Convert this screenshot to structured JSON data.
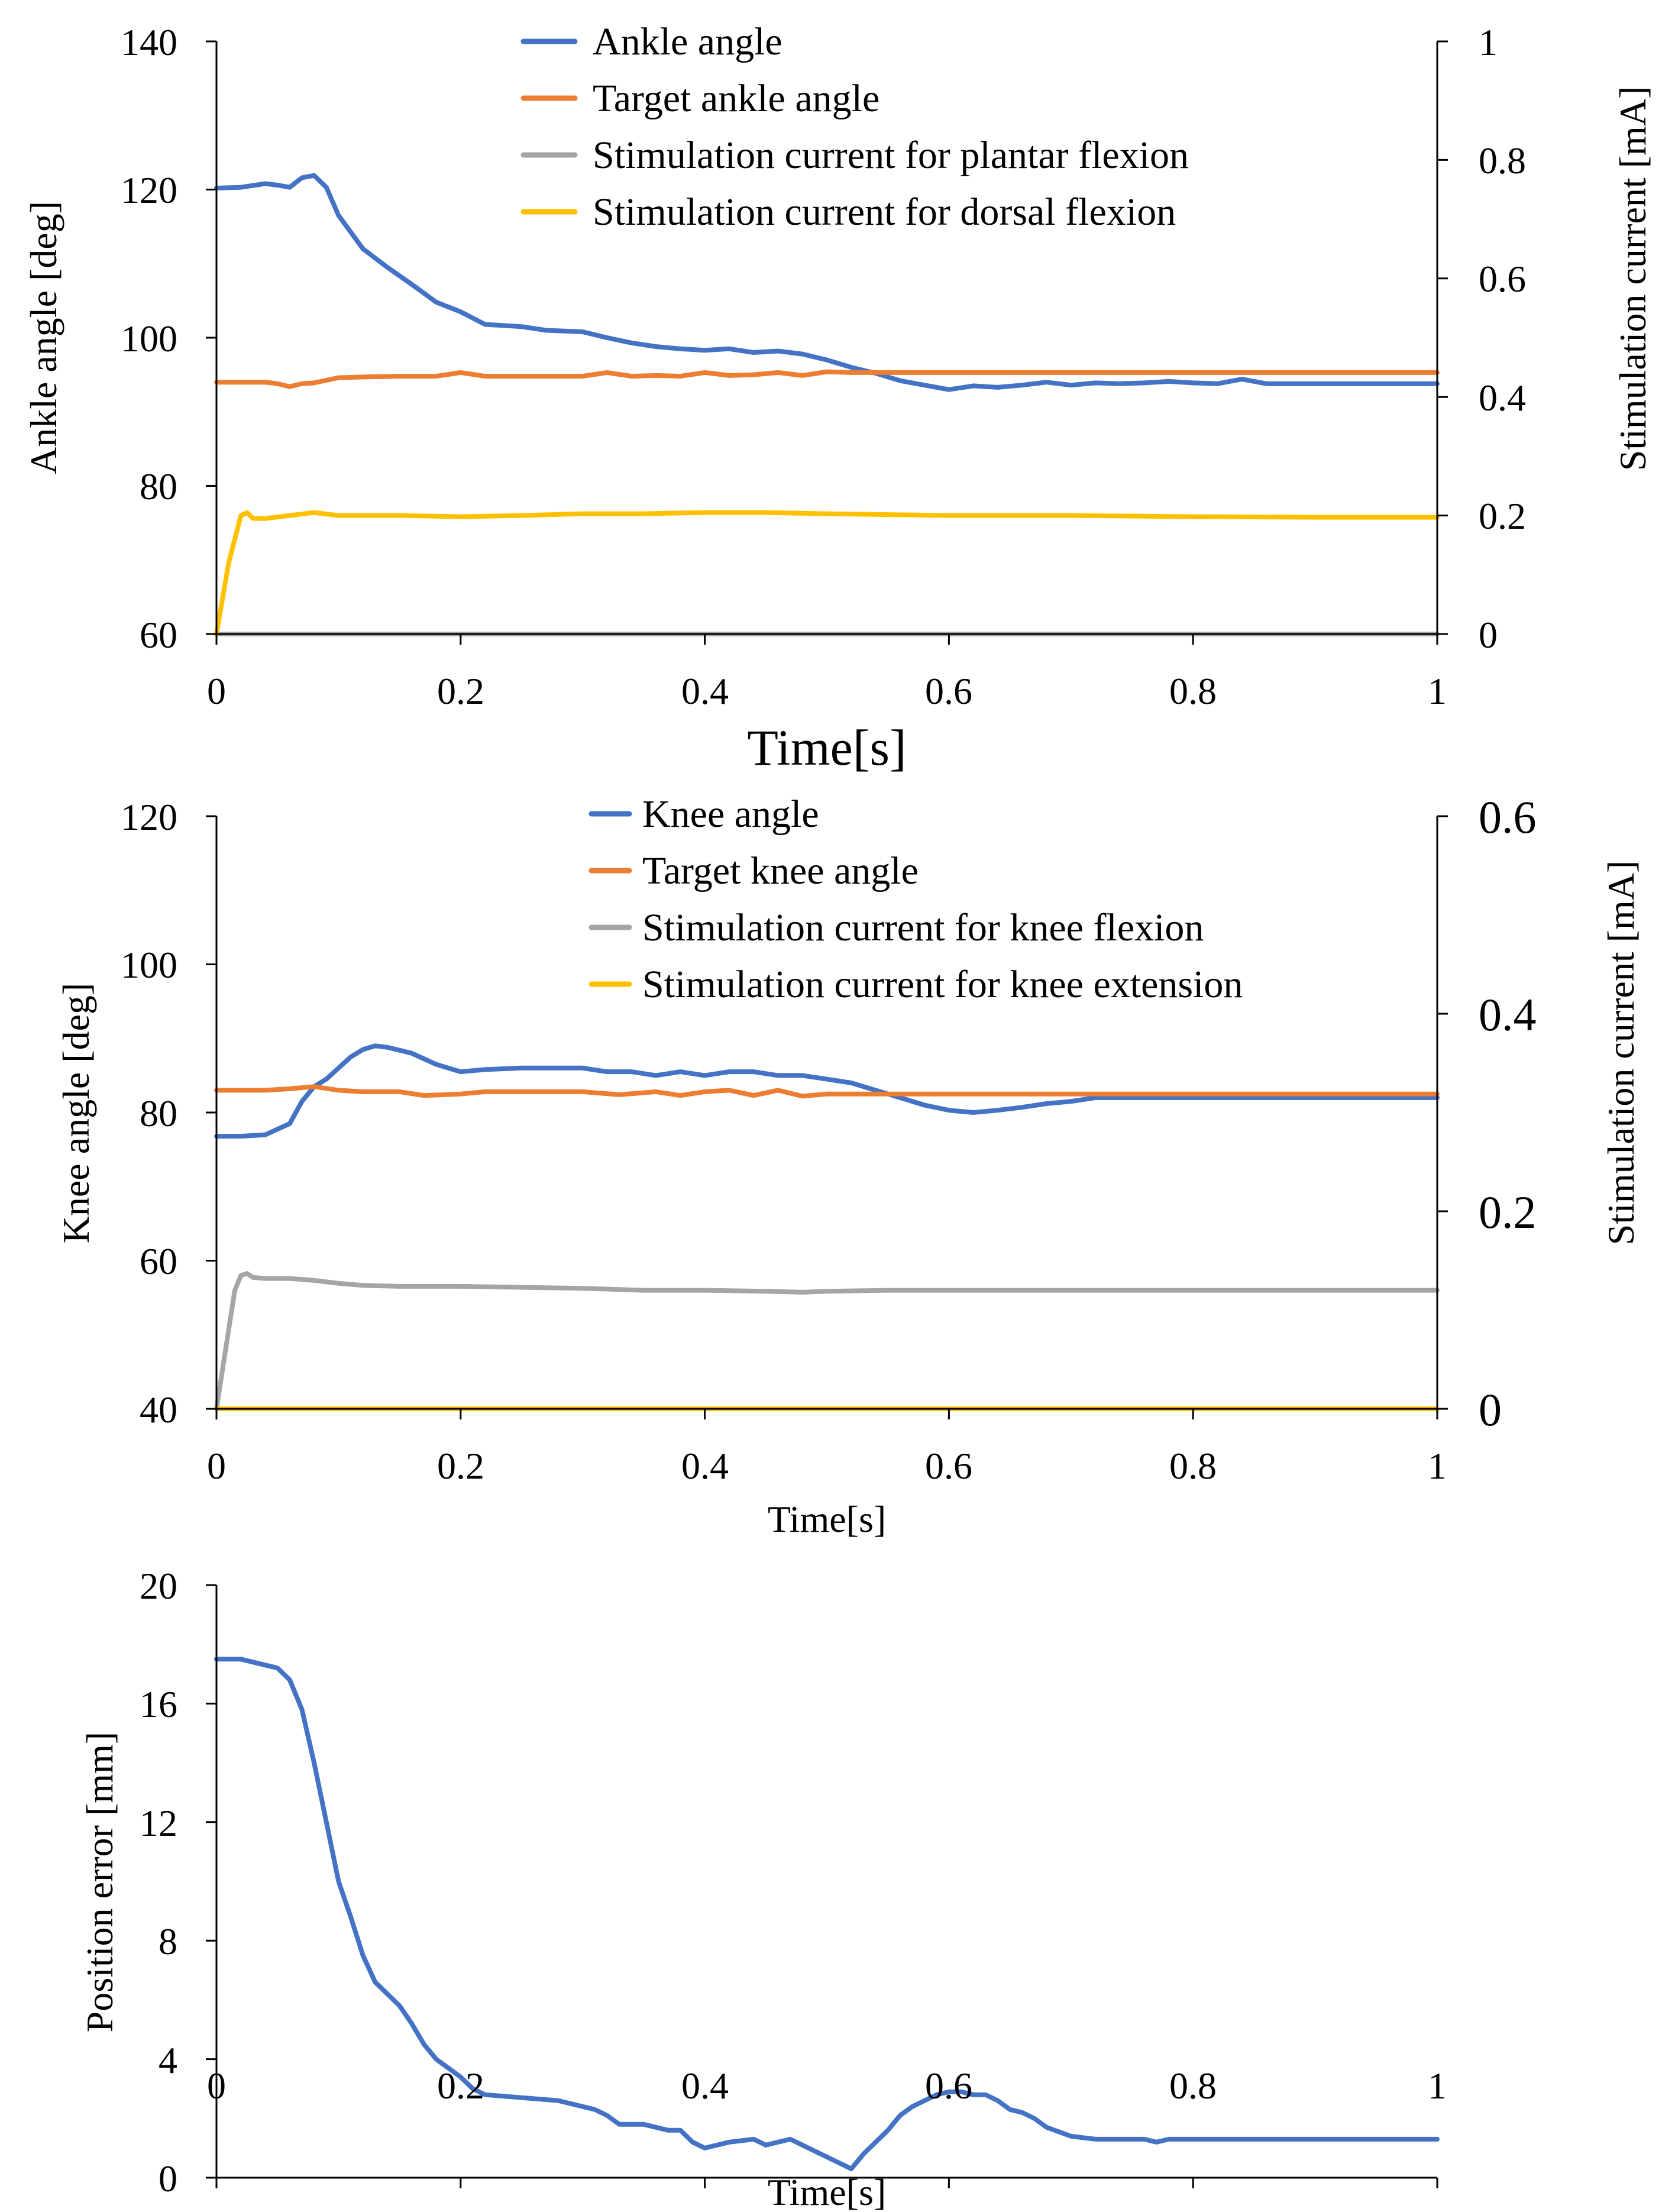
{
  "colors": {
    "blue": "#4472C4",
    "orange": "#ED7D31",
    "gray": "#A5A5A5",
    "yellow": "#FFC000"
  },
  "chart_data": [
    {
      "type": "line",
      "title": "",
      "xlabel": "Time[s]",
      "ylabel": "Ankle angle [deg]",
      "y2label": "Stimulation current [mA]",
      "xlim": [
        0,
        1
      ],
      "ylim": [
        60,
        140
      ],
      "y2lim": [
        0,
        1
      ],
      "x_ticks": [
        "0",
        "0.2",
        "0.4",
        "0.6",
        "0.8",
        "1"
      ],
      "y_ticks": [
        "60",
        "80",
        "100",
        "120",
        "140"
      ],
      "y2_ticks": [
        "0",
        "0.2",
        "0.4",
        "0.6",
        "0.8",
        "1"
      ],
      "grid": false,
      "legend_position": "top-center",
      "series": [
        {
          "name": "Ankle angle",
          "axis": "left",
          "color": "#4472C4",
          "x": [
            0,
            0.02,
            0.04,
            0.05,
            0.06,
            0.07,
            0.08,
            0.09,
            0.1,
            0.12,
            0.14,
            0.16,
            0.18,
            0.2,
            0.22,
            0.25,
            0.27,
            0.3,
            0.32,
            0.34,
            0.36,
            0.38,
            0.4,
            0.42,
            0.44,
            0.46,
            0.48,
            0.5,
            0.52,
            0.54,
            0.56,
            0.58,
            0.6,
            0.62,
            0.64,
            0.66,
            0.68,
            0.7,
            0.72,
            0.74,
            0.76,
            0.78,
            0.8,
            0.82,
            0.84,
            0.86,
            0.88,
            0.9,
            1.0
          ],
          "y": [
            120.2,
            120.3,
            120.8,
            120.6,
            120.3,
            121.6,
            121.9,
            120.3,
            116.5,
            112.0,
            109.5,
            107.2,
            104.8,
            103.5,
            101.8,
            101.5,
            101.0,
            100.8,
            100.0,
            99.3,
            98.8,
            98.5,
            98.3,
            98.5,
            98.0,
            98.2,
            97.8,
            97.0,
            96.0,
            95.2,
            94.2,
            93.6,
            93.0,
            93.5,
            93.3,
            93.6,
            94.0,
            93.6,
            93.9,
            93.8,
            93.9,
            94.1,
            93.9,
            93.8,
            94.4,
            93.8,
            93.8,
            93.8,
            93.8
          ]
        },
        {
          "name": "Target ankle angle",
          "axis": "left",
          "color": "#ED7D31",
          "x": [
            0,
            0.02,
            0.04,
            0.05,
            0.06,
            0.07,
            0.08,
            0.1,
            0.12,
            0.15,
            0.18,
            0.2,
            0.22,
            0.25,
            0.28,
            0.3,
            0.32,
            0.34,
            0.36,
            0.38,
            0.4,
            0.42,
            0.44,
            0.46,
            0.48,
            0.5,
            0.52,
            0.55,
            0.6,
            0.7,
            0.8,
            0.9,
            1.0
          ],
          "y": [
            94.0,
            94.0,
            94.0,
            93.8,
            93.4,
            93.8,
            93.9,
            94.6,
            94.7,
            94.8,
            94.8,
            95.3,
            94.8,
            94.8,
            94.8,
            94.8,
            95.3,
            94.8,
            94.9,
            94.8,
            95.3,
            94.9,
            95.0,
            95.3,
            94.9,
            95.4,
            95.3,
            95.3,
            95.3,
            95.3,
            95.3,
            95.3,
            95.3
          ]
        },
        {
          "name": "Stimulation current for plantar flexion",
          "axis": "right",
          "color": "#A5A5A5",
          "x": [
            0,
            0.2,
            0.4,
            0.6,
            0.8,
            1.0
          ],
          "y": [
            0,
            0,
            0,
            0,
            0,
            0
          ]
        },
        {
          "name": "Stimulation current for dorsal flexion",
          "axis": "right",
          "color": "#FFC000",
          "x": [
            0,
            0.01,
            0.02,
            0.025,
            0.03,
            0.04,
            0.06,
            0.08,
            0.1,
            0.15,
            0.2,
            0.25,
            0.3,
            0.35,
            0.4,
            0.45,
            0.5,
            0.6,
            0.7,
            0.8,
            0.9,
            1.0
          ],
          "y": [
            0.0,
            0.12,
            0.2,
            0.205,
            0.195,
            0.195,
            0.2,
            0.205,
            0.2,
            0.2,
            0.198,
            0.2,
            0.203,
            0.203,
            0.205,
            0.205,
            0.203,
            0.2,
            0.2,
            0.198,
            0.197,
            0.197
          ]
        }
      ]
    },
    {
      "type": "line",
      "title": "",
      "xlabel": "Time[s]",
      "ylabel": "Knee  angle [deg]",
      "y2label": "Stimulation current [mA]",
      "xlim": [
        0,
        1
      ],
      "ylim": [
        40,
        120
      ],
      "y2lim": [
        0,
        0.6
      ],
      "x_ticks": [
        "0",
        "0.2",
        "0.4",
        "0.6",
        "0.8",
        "1"
      ],
      "y_ticks": [
        "40",
        "60",
        "80",
        "100",
        "120"
      ],
      "y2_ticks": [
        "0",
        "0.2",
        "0.4",
        "0.6"
      ],
      "grid": false,
      "legend_position": "top-center",
      "series": [
        {
          "name": "Knee angle",
          "axis": "left",
          "color": "#4472C4",
          "x": [
            0,
            0.02,
            0.04,
            0.06,
            0.07,
            0.08,
            0.09,
            0.1,
            0.11,
            0.12,
            0.13,
            0.14,
            0.16,
            0.18,
            0.2,
            0.22,
            0.25,
            0.27,
            0.3,
            0.32,
            0.34,
            0.36,
            0.38,
            0.4,
            0.42,
            0.44,
            0.46,
            0.48,
            0.5,
            0.52,
            0.54,
            0.56,
            0.58,
            0.6,
            0.62,
            0.64,
            0.66,
            0.68,
            0.7,
            0.72,
            0.75,
            0.8,
            0.85,
            0.9,
            1.0
          ],
          "y": [
            76.8,
            76.8,
            77.0,
            78.5,
            81.5,
            83.5,
            84.5,
            86.0,
            87.5,
            88.5,
            89.0,
            88.8,
            88.0,
            86.5,
            85.5,
            85.8,
            86.0,
            86.0,
            86.0,
            85.5,
            85.5,
            85.0,
            85.5,
            85.0,
            85.5,
            85.5,
            85.0,
            85.0,
            84.5,
            84.0,
            83.0,
            82.0,
            81.0,
            80.3,
            80.0,
            80.3,
            80.7,
            81.2,
            81.5,
            82.0,
            82.0,
            82.0,
            82.0,
            82.0,
            82.0
          ]
        },
        {
          "name": "Target knee angle",
          "axis": "left",
          "color": "#ED7D31",
          "x": [
            0,
            0.02,
            0.04,
            0.06,
            0.08,
            0.1,
            0.12,
            0.15,
            0.17,
            0.2,
            0.22,
            0.25,
            0.3,
            0.33,
            0.36,
            0.38,
            0.4,
            0.42,
            0.44,
            0.46,
            0.48,
            0.5,
            0.55,
            0.6,
            0.7,
            0.8,
            0.9,
            1.0
          ],
          "y": [
            83.0,
            83.0,
            83.0,
            83.2,
            83.5,
            83.0,
            82.8,
            82.8,
            82.3,
            82.5,
            82.8,
            82.8,
            82.8,
            82.4,
            82.8,
            82.3,
            82.8,
            83.0,
            82.3,
            83.0,
            82.2,
            82.5,
            82.5,
            82.5,
            82.5,
            82.5,
            82.5,
            82.5
          ]
        },
        {
          "name": "Stimulation current for knee flexion",
          "axis": "right",
          "color": "#A5A5A5",
          "x": [
            0,
            0.01,
            0.015,
            0.02,
            0.025,
            0.03,
            0.04,
            0.06,
            0.08,
            0.1,
            0.12,
            0.15,
            0.2,
            0.25,
            0.3,
            0.35,
            0.4,
            0.45,
            0.48,
            0.5,
            0.55,
            0.6,
            0.7,
            0.8,
            0.9,
            1.0
          ],
          "y": [
            0.0,
            0.08,
            0.12,
            0.135,
            0.137,
            0.133,
            0.132,
            0.132,
            0.13,
            0.127,
            0.125,
            0.124,
            0.124,
            0.123,
            0.122,
            0.12,
            0.12,
            0.119,
            0.118,
            0.119,
            0.12,
            0.12,
            0.12,
            0.12,
            0.12,
            0.12
          ]
        },
        {
          "name": "Stimulation current for knee extension",
          "axis": "right",
          "color": "#FFC000",
          "x": [
            0,
            0.2,
            0.4,
            0.6,
            0.8,
            1.0
          ],
          "y": [
            0,
            0,
            0,
            0,
            0,
            0
          ]
        }
      ]
    },
    {
      "type": "line",
      "title": "",
      "xlabel": "Time[s]",
      "ylabel": "Position error [mm]",
      "xlim": [
        0,
        1
      ],
      "ylim": [
        0,
        20
      ],
      "x_ticks": [
        "0",
        "0.2",
        "0.4",
        "0.6",
        "0.8",
        "1"
      ],
      "y_ticks": [
        "0",
        "4",
        "8",
        "12",
        "16",
        "20"
      ],
      "grid": false,
      "legend_position": "none",
      "series": [
        {
          "color": "#4472C4",
          "x": [
            0,
            0.02,
            0.04,
            0.05,
            0.06,
            0.07,
            0.08,
            0.09,
            0.1,
            0.11,
            0.12,
            0.13,
            0.14,
            0.15,
            0.16,
            0.17,
            0.18,
            0.2,
            0.21,
            0.22,
            0.25,
            0.28,
            0.3,
            0.31,
            0.32,
            0.33,
            0.35,
            0.37,
            0.38,
            0.39,
            0.4,
            0.42,
            0.44,
            0.45,
            0.46,
            0.47,
            0.48,
            0.5,
            0.51,
            0.52,
            0.53,
            0.54,
            0.55,
            0.56,
            0.57,
            0.58,
            0.59,
            0.6,
            0.61,
            0.62,
            0.63,
            0.64,
            0.65,
            0.66,
            0.67,
            0.68,
            0.7,
            0.72,
            0.75,
            0.76,
            0.77,
            0.78,
            0.8,
            0.85,
            0.9,
            1.0
          ],
          "y": [
            17.5,
            17.5,
            17.3,
            17.2,
            16.8,
            15.8,
            14.0,
            12.0,
            10.0,
            8.8,
            7.5,
            6.6,
            6.2,
            5.8,
            5.2,
            4.5,
            4.0,
            3.4,
            3.0,
            2.8,
            2.7,
            2.6,
            2.4,
            2.3,
            2.1,
            1.8,
            1.8,
            1.6,
            1.6,
            1.2,
            1.0,
            1.2,
            1.3,
            1.1,
            1.2,
            1.3,
            1.1,
            0.7,
            0.5,
            0.3,
            0.8,
            1.2,
            1.6,
            2.1,
            2.4,
            2.6,
            2.8,
            2.9,
            2.9,
            2.8,
            2.8,
            2.6,
            2.3,
            2.2,
            2.0,
            1.7,
            1.4,
            1.3,
            1.3,
            1.3,
            1.2,
            1.3,
            1.3,
            1.3,
            1.3,
            1.3
          ]
        }
      ]
    }
  ]
}
